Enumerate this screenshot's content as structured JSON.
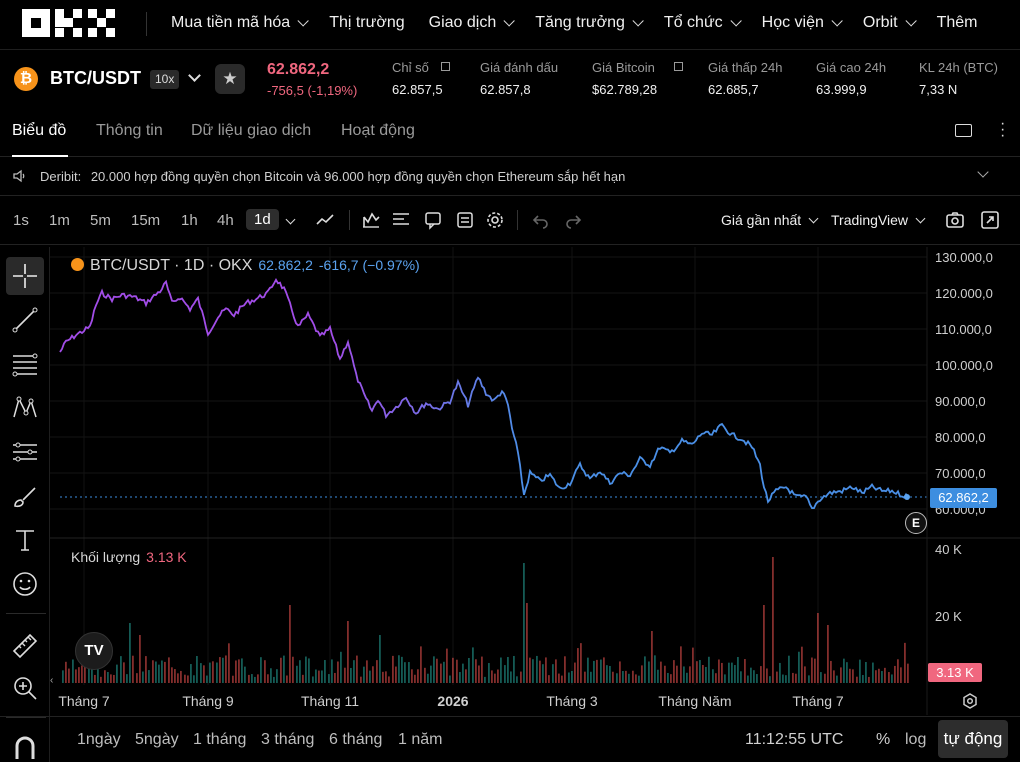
{
  "nav": {
    "items": [
      {
        "label": "Mua tiền mã hóa",
        "has_dropdown": true
      },
      {
        "label": "Thị trường",
        "has_dropdown": false
      },
      {
        "label": "Giao dịch",
        "has_dropdown": true
      },
      {
        "label": "Tăng trưởng",
        "has_dropdown": true
      },
      {
        "label": "Tổ chức",
        "has_dropdown": true
      },
      {
        "label": "Học viện",
        "has_dropdown": true
      },
      {
        "label": "Orbit",
        "has_dropdown": true
      },
      {
        "label": "Thêm",
        "has_dropdown": false
      }
    ]
  },
  "ticker": {
    "coin_symbol": "₿",
    "pair": "BTC/USDT",
    "leverage": "10x",
    "last_price": "62.862,2",
    "change": "-756,5 (-1,19%)",
    "stats": [
      {
        "label": "Chỉ số",
        "value": "62.857,5",
        "link": true
      },
      {
        "label": "Giá đánh dấu",
        "value": "62.857,8",
        "link": false
      },
      {
        "label": "Giá Bitcoin",
        "value": "$62.789,28",
        "link": true
      },
      {
        "label": "Giá thấp 24h",
        "value": "62.685,7",
        "link": false
      },
      {
        "label": "Giá cao 24h",
        "value": "63.999,9",
        "link": false
      },
      {
        "label": "KL 24h (BTC)",
        "value": "7,33 N",
        "link": false
      }
    ]
  },
  "tabs": [
    "Biểu đồ",
    "Thông tin",
    "Dữ liệu giao dịch",
    "Hoạt động"
  ],
  "announcement": {
    "source": "Deribit:",
    "text": "20.000 hợp đồng quyền chọn Bitcoin và 96.000 hợp đồng quyền chọn Ethereum sắp hết hạn"
  },
  "toolbar": {
    "timeframes": [
      "1s",
      "1m",
      "5m",
      "15m",
      "1h",
      "4h",
      "1d"
    ],
    "active_timeframe": "1d",
    "price_type": "Giá gần nhất",
    "chart_engine": "TradingView"
  },
  "chart": {
    "legend_title": "BTC/USDT · 1D · OKX",
    "legend_value": "62.862,2",
    "legend_change": "-616,7 (−0.97%)",
    "volume_label": "Khối lượng",
    "volume_value": "3.13 K",
    "price_tag": "62.862,2",
    "volume_tag": "3.13 K",
    "e_badge": "E",
    "tv_logo": "TV",
    "y_ticks": [
      "130.000,0",
      "120.000,0",
      "110.000,0",
      "100.000,0",
      "90.000,0",
      "80.000,0",
      "70.000,0",
      "60.000,0"
    ],
    "vol_ticks": [
      "40 K",
      "20 K"
    ],
    "x_ticks": [
      "Tháng 7",
      "Tháng 9",
      "Tháng 11",
      "2026",
      "Tháng 3",
      "Tháng Năm",
      "Tháng 7"
    ],
    "line_gradient": [
      "#a24de8",
      "#4a8fe6"
    ],
    "up_color": "#26a69a",
    "down_color": "#ef5350"
  },
  "bottom": {
    "ranges": [
      "1ngày",
      "5ngày",
      "1 tháng",
      "3 tháng",
      "6 tháng",
      "1 năm"
    ],
    "clock": "11:12:55 UTC",
    "percent": "%",
    "log": "log",
    "auto": "tự động"
  }
}
